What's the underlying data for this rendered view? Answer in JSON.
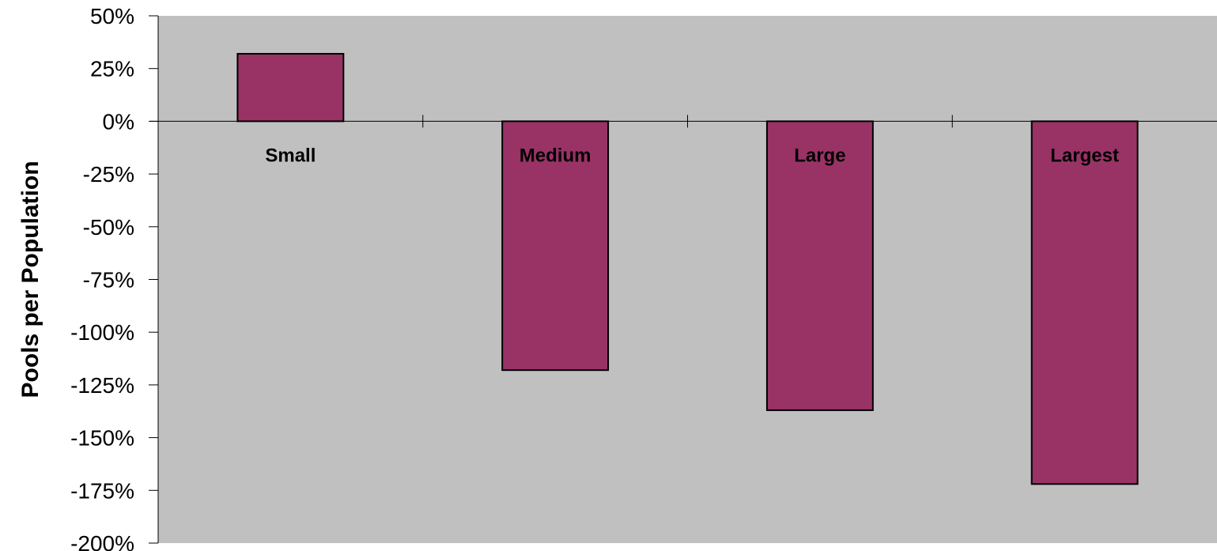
{
  "chart_data": {
    "type": "bar",
    "title": "",
    "xlabel": "",
    "ylabel": "Pools per Population",
    "categories": [
      "Small",
      "Medium",
      "Large",
      "Largest"
    ],
    "values": [
      32,
      -118,
      -137,
      -172
    ],
    "unit": "%",
    "ylim": [
      -200,
      50
    ],
    "yticks": [
      50,
      25,
      0,
      -25,
      -50,
      -75,
      -100,
      -125,
      -150,
      -175,
      -200
    ],
    "ytick_labels": [
      "50%",
      "25%",
      "0%",
      "-25%",
      "-50%",
      "-75%",
      "-100%",
      "-125%",
      "-150%",
      "-175%",
      "-200%"
    ],
    "grid": false,
    "legend": "none",
    "colors": {
      "plot_background": "#c0c0c0",
      "bar_fill": "#993366",
      "bar_stroke": "#000000",
      "axis": "#000000"
    }
  }
}
